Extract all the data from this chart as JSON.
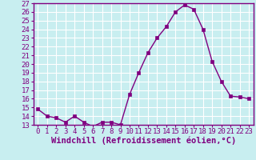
{
  "x": [
    0,
    1,
    2,
    3,
    4,
    5,
    6,
    7,
    8,
    9,
    10,
    11,
    12,
    13,
    14,
    15,
    16,
    17,
    18,
    19,
    20,
    21,
    22,
    23
  ],
  "y": [
    14.8,
    14.0,
    13.8,
    13.3,
    14.0,
    13.3,
    12.8,
    13.3,
    13.3,
    13.0,
    16.5,
    19.0,
    21.3,
    23.0,
    24.3,
    26.0,
    26.8,
    26.3,
    24.0,
    20.3,
    18.0,
    16.3,
    16.2,
    16.0
  ],
  "line_color": "#800080",
  "marker_color": "#800080",
  "bg_color": "#c8eef0",
  "grid_color": "#ffffff",
  "xlabel": "Windchill (Refroidissement éolien,°C)",
  "ylabel_ticks": [
    13,
    14,
    15,
    16,
    17,
    18,
    19,
    20,
    21,
    22,
    23,
    24,
    25,
    26,
    27
  ],
  "xlim": [
    -0.5,
    23.5
  ],
  "ylim": [
    13,
    27
  ],
  "xticks": [
    0,
    1,
    2,
    3,
    4,
    5,
    6,
    7,
    8,
    9,
    10,
    11,
    12,
    13,
    14,
    15,
    16,
    17,
    18,
    19,
    20,
    21,
    22,
    23
  ],
  "tick_fontsize": 6.5,
  "xlabel_fontsize": 7.5,
  "line_width": 1.0,
  "marker_size": 2.5,
  "spine_color": "#800080"
}
